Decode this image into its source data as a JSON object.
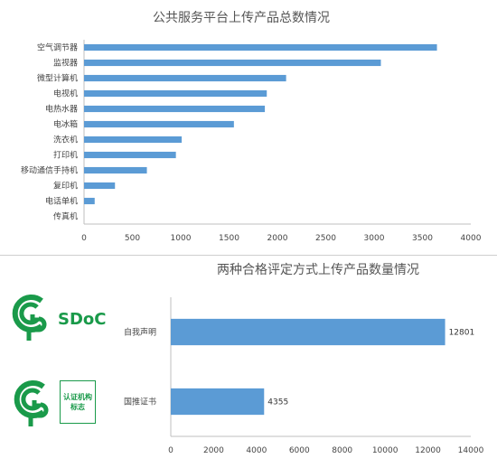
{
  "colors": {
    "bar": "#5b9bd5",
    "axis": "#bfbfbf",
    "logo_green": "#1a9a4a"
  },
  "chart_data": [
    {
      "type": "bar",
      "orientation": "horizontal",
      "title": "公共服务平台上传产品总数情况",
      "categories": [
        "空气调节器",
        "监视器",
        "微型计算机",
        "电视机",
        "电热水器",
        "电冰箱",
        "洗衣机",
        "打印机",
        "移动通信手持机",
        "复印机",
        "电话单机",
        "传真机"
      ],
      "values": [
        3650,
        3070,
        2090,
        1890,
        1870,
        1550,
        1010,
        950,
        650,
        320,
        110,
        0
      ],
      "xticks": [
        0,
        500,
        1000,
        1500,
        2000,
        2500,
        3000,
        3500,
        4000
      ],
      "xlim": [
        0,
        4000
      ],
      "grid": false,
      "legend": "none"
    },
    {
      "type": "bar",
      "orientation": "horizontal",
      "title": "两种合格评定方式上传产品数量情况",
      "categories": [
        "自我声明",
        "国推证书"
      ],
      "values": [
        12801,
        4355
      ],
      "data_labels": [
        "12801",
        "4355"
      ],
      "xticks": [
        0,
        2000,
        4000,
        6000,
        8000,
        10000,
        12000,
        14000
      ],
      "xlim": [
        0,
        14000
      ],
      "grid": false,
      "legend": "none"
    }
  ],
  "logos": {
    "sdoc_label": "SDoC",
    "cert_label_line1": "认证机构",
    "cert_label_line2": "标志"
  }
}
